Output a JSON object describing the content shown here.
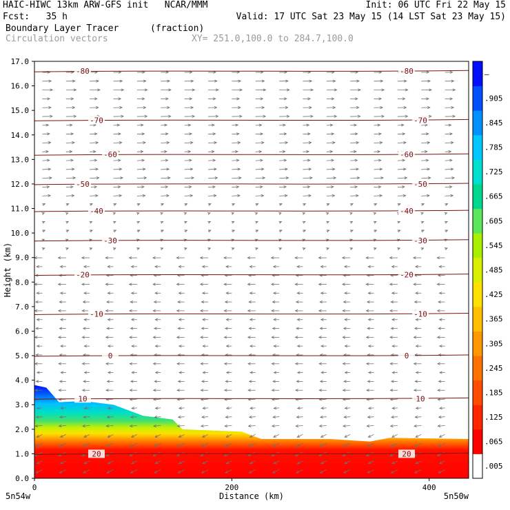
{
  "header": {
    "line1_left": "HAIC-HIWC 13km ARW-GFS init   NCAR/MMM",
    "line1_right": "Init: 06 UTC Fri 22 May 15",
    "line2_left": "Fcst:   35 h",
    "line2_right": "Valid: 17 UTC Sat 23 May 15 (14 LST Sat 23 May 15)",
    "line3_left": "Boundary Layer Tracer",
    "line3_mid": "(fraction)",
    "line4_left": "Circulation vectors",
    "line4_mid": "XY= 251.0,100.0 to 284.7,100.0"
  },
  "colors": {
    "contour": "#7a1010",
    "vector": "#707070",
    "colorbar": [
      "#ffffff",
      "#ff0000",
      "#ff2600",
      "#ff4c00",
      "#ff7200",
      "#ff9800",
      "#ffbf00",
      "#ffe000",
      "#d8f000",
      "#a8f000",
      "#5ce65c",
      "#00d890",
      "#00e0d0",
      "#00c8ff",
      "#0090ff",
      "#0050ff",
      "#0010ff"
    ]
  },
  "chart_data": {
    "type": "heatmap",
    "title": "Boundary Layer Tracer",
    "units": "(fraction)",
    "xlabel": "Distance (km)",
    "ylabel": "Height (km)",
    "xlim": [
      0,
      440
    ],
    "ylim": [
      0,
      17
    ],
    "x_ticks": [
      "0",
      "200",
      "400"
    ],
    "x_tick_values": [
      0,
      200,
      400
    ],
    "y_ticks": [
      "0.0",
      "1.0",
      "2.0",
      "3.0",
      "4.0",
      "5.0",
      "6.0",
      "7.0",
      "8.0",
      "9.0",
      "10.0",
      "11.0",
      "12.0",
      "13.0",
      "14.0",
      "15.0",
      "16.0",
      "17.0"
    ],
    "x_endpoints": {
      "left": "5n54w",
      "right": "5n50w"
    },
    "colorbar_labels": [
      ".005",
      ".065",
      ".125",
      ".185",
      ".245",
      ".305",
      ".365",
      ".425",
      ".485",
      ".545",
      ".605",
      ".665",
      ".725",
      ".785",
      ".845",
      ".905",
      "–"
    ],
    "contours": [
      {
        "label": "-80",
        "y": 16.6
      },
      {
        "label": "-70",
        "y": 14.6
      },
      {
        "label": "-60",
        "y": 13.2
      },
      {
        "label": "-50",
        "y": 12.0
      },
      {
        "label": "-40",
        "y": 10.9
      },
      {
        "label": "-30",
        "y": 9.7
      },
      {
        "label": "-20",
        "y": 8.3
      },
      {
        "label": "-10",
        "y": 6.7
      },
      {
        "label": "0",
        "y": 5.0
      },
      {
        "label": "10",
        "y": 3.25
      },
      {
        "label": "20",
        "y": 1.0
      }
    ],
    "tracer_top_km": [
      {
        "x": 0,
        "top": 3.8
      },
      {
        "x": 12,
        "top": 3.7
      },
      {
        "x": 25,
        "top": 3.1
      },
      {
        "x": 50,
        "top": 3.15
      },
      {
        "x": 80,
        "top": 3.0
      },
      {
        "x": 110,
        "top": 2.55
      },
      {
        "x": 140,
        "top": 2.4
      },
      {
        "x": 150,
        "top": 2.0
      },
      {
        "x": 210,
        "top": 1.9
      },
      {
        "x": 230,
        "top": 1.6
      },
      {
        "x": 300,
        "top": 1.6
      },
      {
        "x": 340,
        "top": 1.5
      },
      {
        "x": 360,
        "top": 1.65
      },
      {
        "x": 440,
        "top": 1.6
      }
    ]
  }
}
